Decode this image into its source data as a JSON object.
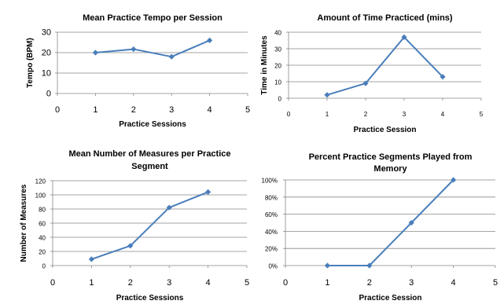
{
  "colors": {
    "series": "#4a7ebb",
    "grid": "#878787"
  },
  "chart_data": [
    {
      "type": "line",
      "title": [
        "Mean Practice Tempo per Session"
      ],
      "xlabel": "Practice Sessions",
      "ylabel": "Tempo (BPM)",
      "xlim": [
        0,
        5
      ],
      "xticks": [
        0,
        1,
        2,
        3,
        4,
        5
      ],
      "ylim": [
        0,
        30
      ],
      "yticks": [
        0,
        10,
        20,
        30
      ],
      "x": [
        1,
        2,
        3,
        4
      ],
      "series": [
        {
          "values": [
            20,
            21.7,
            18,
            26
          ]
        }
      ],
      "grid": "horizontal",
      "legend": "none",
      "tick_size": "large"
    },
    {
      "type": "line",
      "title": [
        "Amount of Time Practiced (mins)"
      ],
      "xlabel": "Practice Session",
      "ylabel": "Time in Minutes",
      "xlim": [
        0,
        5
      ],
      "xticks": [
        0,
        1,
        2,
        3,
        4,
        5
      ],
      "ylim": [
        0,
        40
      ],
      "yticks": [
        0,
        10,
        20,
        30,
        40
      ],
      "x": [
        1,
        2,
        3,
        4
      ],
      "series": [
        {
          "values": [
            2,
            9,
            37,
            13
          ]
        }
      ],
      "grid": "horizontal",
      "legend": "none",
      "tick_size": "small"
    },
    {
      "type": "line",
      "title": [
        "Mean Number of Measures per Practice",
        "Segment"
      ],
      "xlabel": "Practice Sessions",
      "ylabel": "Number of Measures",
      "xlim": [
        0,
        5
      ],
      "xticks": [
        0,
        1,
        2,
        3,
        4,
        5
      ],
      "ylim": [
        0,
        120
      ],
      "yticks": [
        0,
        20,
        40,
        60,
        80,
        100,
        120
      ],
      "x": [
        1,
        2,
        3,
        4
      ],
      "series": [
        {
          "values": [
            9,
            28,
            82,
            104
          ]
        }
      ],
      "grid": "horizontal",
      "legend": "none",
      "tick_size": "mixed"
    },
    {
      "type": "line",
      "title": [
        "Percent Practice Segments Played from",
        "Memory"
      ],
      "xlabel": "Practice Session",
      "ylabel": "",
      "xlim": [
        0,
        5
      ],
      "xticks": [
        0,
        1,
        2,
        3,
        4,
        5
      ],
      "ylim": [
        0,
        100
      ],
      "yticks": [
        0,
        20,
        40,
        60,
        80,
        100
      ],
      "ytick_labels": [
        "0%",
        "20%",
        "40%",
        "60%",
        "80%",
        "100%"
      ],
      "x": [
        1,
        2,
        3,
        4
      ],
      "series": [
        {
          "values": [
            0,
            0,
            50,
            100
          ]
        }
      ],
      "grid": "horizontal",
      "legend": "none",
      "tick_size": "mixed"
    }
  ]
}
